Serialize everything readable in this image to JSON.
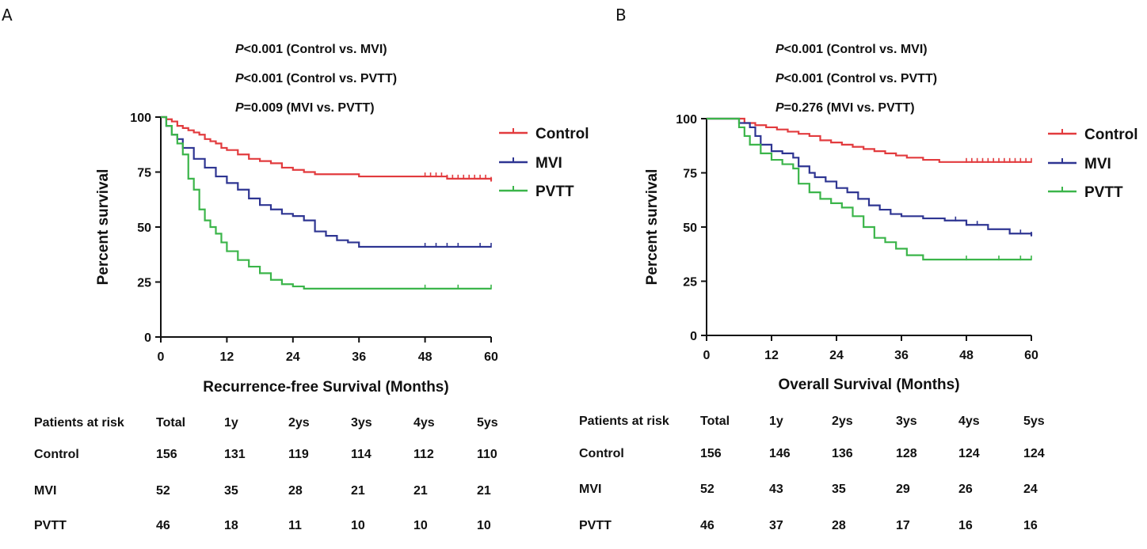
{
  "colors": {
    "control": "#e23b3e",
    "mvi": "#2e3592",
    "pvtt": "#3bb54a",
    "axis": "#111111"
  },
  "chart_data": [
    {
      "panel_letter": "A",
      "type": "line",
      "subtype": "kaplan-meier",
      "pvalues": [
        {
          "italic": "P",
          "text": "<0.001 (Control vs. MVI)"
        },
        {
          "italic": "P",
          "text": "<0.001 (Control vs. PVTT)"
        },
        {
          "italic": "P",
          "text": "=0.009 (MVI vs. PVTT)"
        }
      ],
      "xlabel": "Recurrence-free Survival (Months)",
      "ylabel": "Percent survival",
      "xlim": [
        0,
        60
      ],
      "ylim": [
        0,
        100
      ],
      "xticks": [
        0,
        12,
        24,
        36,
        48,
        60
      ],
      "yticks": [
        0,
        25,
        50,
        75,
        100
      ],
      "legend": [
        "Control",
        "MVI",
        "PVTT"
      ],
      "series": [
        {
          "name": "Control",
          "color": "#e23b3e",
          "x": [
            0,
            1,
            2,
            3,
            4,
            5,
            6,
            7,
            8,
            9,
            10,
            11,
            12,
            14,
            16,
            18,
            20,
            22,
            24,
            26,
            28,
            36,
            48,
            52,
            60
          ],
          "y": [
            100,
            99,
            98,
            96,
            95,
            94,
            93,
            92,
            90,
            89,
            88,
            86,
            85,
            83,
            81,
            80,
            79,
            77,
            76,
            75,
            74,
            73,
            73,
            72,
            71
          ],
          "censored": [
            48,
            49,
            50,
            51,
            52,
            53,
            54,
            55,
            56,
            57,
            58,
            59,
            60
          ]
        },
        {
          "name": "MVI",
          "color": "#2e3592",
          "x": [
            0,
            1,
            2,
            3,
            4,
            6,
            8,
            10,
            12,
            14,
            16,
            18,
            20,
            22,
            24,
            26,
            28,
            30,
            32,
            34,
            36,
            60
          ],
          "y": [
            100,
            96,
            92,
            90,
            86,
            81,
            77,
            73,
            70,
            67,
            63,
            60,
            58,
            56,
            55,
            53,
            48,
            46,
            44,
            43,
            41,
            41
          ],
          "censored": [
            48,
            50,
            52,
            54,
            58,
            60
          ]
        },
        {
          "name": "PVTT",
          "color": "#3bb54a",
          "x": [
            0,
            1,
            2,
            3,
            4,
            5,
            6,
            7,
            8,
            9,
            10,
            11,
            12,
            14,
            16,
            18,
            20,
            22,
            24,
            26,
            60
          ],
          "y": [
            100,
            96,
            92,
            88,
            83,
            72,
            67,
            58,
            53,
            50,
            47,
            43,
            39,
            35,
            32,
            29,
            26,
            24,
            23,
            22,
            22
          ],
          "censored": [
            48,
            54,
            60
          ]
        }
      ],
      "risk_table": {
        "header": [
          "Patients at risk",
          "Total",
          "1y",
          "2ys",
          "3ys",
          "4ys",
          "5ys"
        ],
        "rows": [
          [
            "Control",
            "156",
            "131",
            "119",
            "114",
            "112",
            "110"
          ],
          [
            "MVI",
            "52",
            "35",
            "28",
            "21",
            "21",
            "21"
          ],
          [
            "PVTT",
            "46",
            "18",
            "11",
            "10",
            "10",
            "10"
          ]
        ]
      }
    },
    {
      "panel_letter": "B",
      "type": "line",
      "subtype": "kaplan-meier",
      "pvalues": [
        {
          "italic": "P",
          "text": "<0.001 (Control vs. MVI)"
        },
        {
          "italic": "P",
          "text": "<0.001 (Control vs. PVTT)"
        },
        {
          "italic": "P",
          "text": "=0.276 (MVI vs. PVTT)"
        }
      ],
      "xlabel": "Overall Survival (Months)",
      "ylabel": "Percent survival",
      "xlim": [
        0,
        60
      ],
      "ylim": [
        0,
        100
      ],
      "xticks": [
        0,
        12,
        24,
        36,
        48,
        60
      ],
      "yticks": [
        0,
        25,
        50,
        75,
        100
      ],
      "legend": [
        "Control",
        "MVI",
        "PVTT"
      ],
      "series": [
        {
          "name": "Control",
          "color": "#e23b3e",
          "x": [
            0,
            5,
            7,
            9,
            11,
            13,
            15,
            17,
            19,
            21,
            23,
            25,
            27,
            29,
            31,
            33,
            35,
            37,
            40,
            43,
            46,
            60
          ],
          "y": [
            100,
            100,
            98,
            97,
            96,
            95,
            94,
            93,
            92,
            90,
            89,
            88,
            87,
            86,
            85,
            84,
            83,
            82,
            81,
            80,
            80,
            80
          ],
          "censored": [
            48,
            49,
            50,
            51,
            52,
            53,
            54,
            55,
            56,
            57,
            58,
            59,
            60
          ]
        },
        {
          "name": "MVI",
          "color": "#2e3592",
          "x": [
            0,
            5,
            6,
            8,
            9,
            10,
            12,
            14,
            16,
            17,
            19,
            20,
            22,
            24,
            26,
            28,
            30,
            32,
            34,
            36,
            40,
            44,
            48,
            52,
            56,
            60
          ],
          "y": [
            100,
            100,
            98,
            96,
            92,
            88,
            85,
            84,
            82,
            78,
            75,
            73,
            71,
            68,
            66,
            63,
            60,
            58,
            56,
            55,
            54,
            53,
            51,
            49,
            47,
            46
          ],
          "censored": [
            46,
            48,
            50,
            56,
            58,
            60
          ]
        },
        {
          "name": "PVTT",
          "color": "#3bb54a",
          "x": [
            0,
            5,
            6,
            7,
            8,
            10,
            12,
            14,
            16,
            17,
            19,
            21,
            23,
            25,
            27,
            29,
            31,
            33,
            35,
            37,
            40,
            60
          ],
          "y": [
            100,
            100,
            96,
            92,
            88,
            84,
            81,
            79,
            77,
            70,
            66,
            63,
            61,
            59,
            55,
            50,
            45,
            43,
            40,
            37,
            35,
            35
          ],
          "censored": [
            48,
            54,
            58,
            60
          ]
        }
      ],
      "risk_table": {
        "header": [
          "Patients at risk",
          "Total",
          "1y",
          "2ys",
          "3ys",
          "4ys",
          "5ys"
        ],
        "rows": [
          [
            "Control",
            "156",
            "146",
            "136",
            "128",
            "124",
            "124"
          ],
          [
            "MVI",
            "52",
            "43",
            "35",
            "29",
            "26",
            "24"
          ],
          [
            "PVTT",
            "46",
            "37",
            "28",
            "17",
            "16",
            "16"
          ]
        ]
      }
    }
  ]
}
